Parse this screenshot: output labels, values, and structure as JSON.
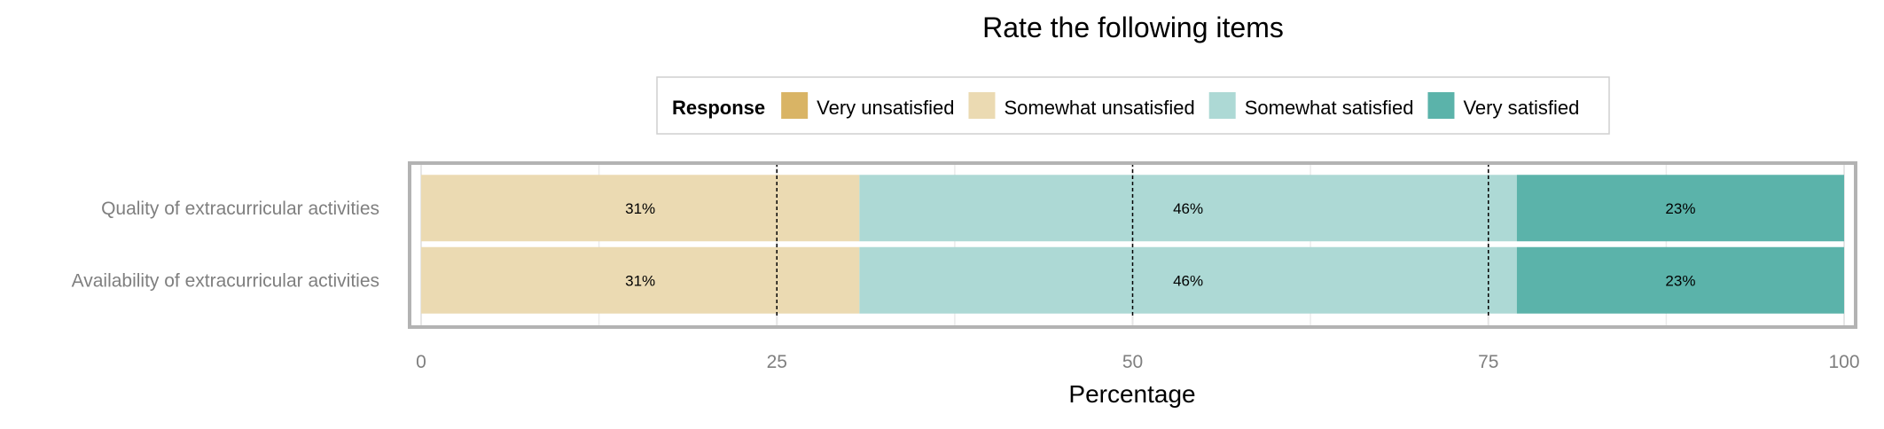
{
  "chart_data": {
    "type": "bar",
    "orientation": "horizontal",
    "stacked": true,
    "title": "Rate the following items",
    "xlabel": "Percentage",
    "ylabel": "",
    "xlim": [
      0,
      100
    ],
    "x_ticks": [
      0,
      25,
      50,
      75,
      100
    ],
    "reference_lines": [
      25,
      50,
      75
    ],
    "grid": true,
    "legend": {
      "title": "Response",
      "position": "top",
      "entries": [
        {
          "name": "Very unsatisfied",
          "color": "#d9b465"
        },
        {
          "name": "Somewhat unsatisfied",
          "color": "#ebdab2"
        },
        {
          "name": "Somewhat satisfied",
          "color": "#add9d5"
        },
        {
          "name": "Very satisfied",
          "color": "#5bb3aa"
        }
      ]
    },
    "categories": [
      "Quality of extracurricular activities",
      "Availability of extracurricular activities"
    ],
    "series": [
      {
        "name": "Very unsatisfied",
        "values": [
          0,
          0
        ],
        "labels": [
          "",
          ""
        ]
      },
      {
        "name": "Somewhat unsatisfied",
        "values": [
          30.8,
          30.8
        ],
        "labels": [
          "31%",
          "31%"
        ]
      },
      {
        "name": "Somewhat satisfied",
        "values": [
          46.2,
          46.2
        ],
        "labels": [
          "46%",
          "46%"
        ]
      },
      {
        "name": "Very satisfied",
        "values": [
          23.0,
          23.0
        ],
        "labels": [
          "23%",
          "23%"
        ]
      }
    ]
  }
}
